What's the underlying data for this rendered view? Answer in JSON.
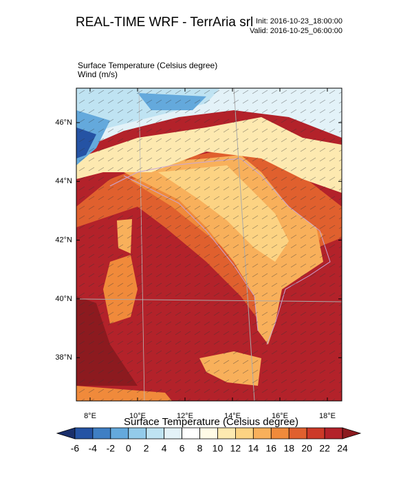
{
  "header": {
    "title": "REAL-TIME WRF - TerrAria srl",
    "init": "Init: 2016-10-23_18:00:00",
    "valid": "Valid: 2016-10-25_06:00:00"
  },
  "subtitle": [
    "Surface Temperature   (Celsius degree)",
    "Wind   (m/s)"
  ],
  "map": {
    "lat_labels": [
      "46°N",
      "44°N",
      "42°N",
      "40°N",
      "38°N"
    ],
    "lon_labels": [
      "8°E",
      "10°E",
      "12°E",
      "14°E",
      "16°E",
      "18°E"
    ]
  },
  "colorbar": {
    "title": "Surface Temperature  (Celsius degree)",
    "labels": [
      -6,
      -4,
      -2,
      0,
      2,
      4,
      6,
      8,
      10,
      12,
      14,
      16,
      18,
      20,
      22,
      24
    ],
    "colors": [
      "#1a2f6b",
      "#2553a4",
      "#3f7fc4",
      "#64a9dc",
      "#93cbea",
      "#bfe3f2",
      "#e3f2f8",
      "#ffffff",
      "#fffbe6",
      "#fde9b0",
      "#fcd383",
      "#f8b05b",
      "#f08a3b",
      "#e0602e",
      "#cc3a28",
      "#b3222a",
      "#8c1a1f"
    ]
  }
}
